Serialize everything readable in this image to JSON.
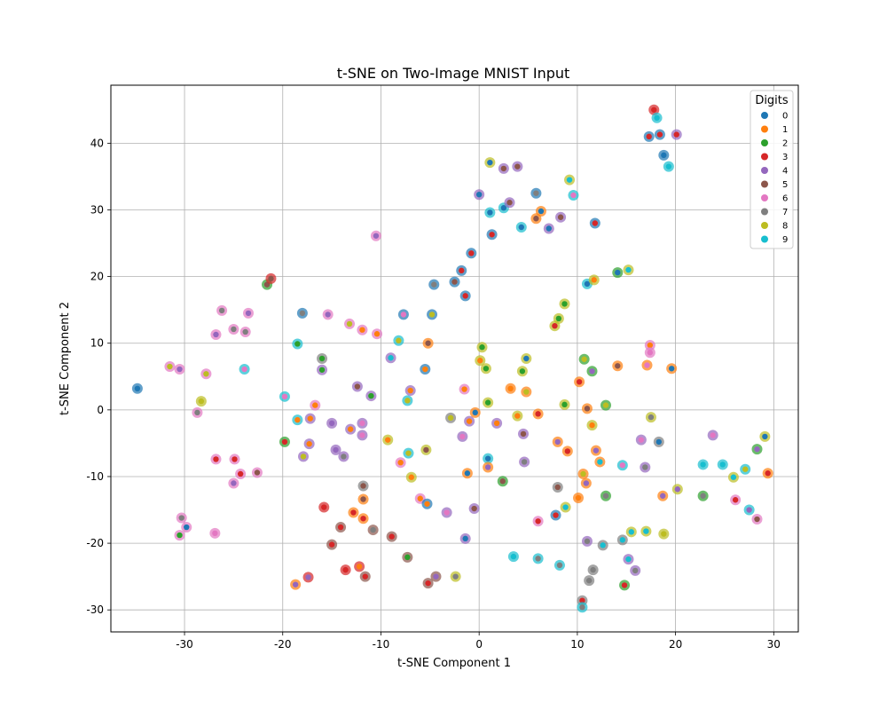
{
  "chart_data": {
    "type": "scatter",
    "title": "t-SNE on Two-Image MNIST Input",
    "xlabel": "t-SNE Component 1",
    "ylabel": "t-SNE Component 2",
    "xlim": [
      -37.5,
      32.5
    ],
    "ylim": [
      -33.3,
      48.7
    ],
    "xticks": [
      -30,
      -20,
      -10,
      0,
      10,
      20,
      30
    ],
    "yticks": [
      -30,
      -20,
      -10,
      0,
      10,
      20,
      30,
      40
    ],
    "grid": true,
    "legend": {
      "title": "Digits",
      "position": "top-right",
      "entries": [
        "0",
        "1",
        "2",
        "3",
        "4",
        "5",
        "6",
        "7",
        "8",
        "9"
      ]
    },
    "colors": [
      "#1f77b4",
      "#ff7f0e",
      "#2ca02c",
      "#d62728",
      "#9467bd",
      "#8c564b",
      "#e377c2",
      "#7f7f7f",
      "#bcbd22",
      "#17becf"
    ],
    "points": [
      {
        "x": -34.8,
        "y": 3.2,
        "outer": 0,
        "inner": 0
      },
      {
        "x": -31.5,
        "y": 6.5,
        "outer": 6,
        "inner": 8
      },
      {
        "x": -30.5,
        "y": 6.1,
        "outer": 6,
        "inner": 4
      },
      {
        "x": -28.7,
        "y": -0.4,
        "outer": 6,
        "inner": 7
      },
      {
        "x": -28.3,
        "y": 1.3,
        "outer": 8,
        "inner": 8
      },
      {
        "x": -27.8,
        "y": 5.4,
        "outer": 6,
        "inner": 8
      },
      {
        "x": -26.8,
        "y": 11.3,
        "outer": 6,
        "inner": 4
      },
      {
        "x": -26.8,
        "y": -7.4,
        "outer": 6,
        "inner": 3
      },
      {
        "x": -26.9,
        "y": -18.5,
        "outer": 6,
        "inner": 6
      },
      {
        "x": -26.2,
        "y": 14.9,
        "outer": 6,
        "inner": 7
      },
      {
        "x": -25.0,
        "y": 12.1,
        "outer": 6,
        "inner": 7
      },
      {
        "x": -24.9,
        "y": -7.4,
        "outer": 6,
        "inner": 3
      },
      {
        "x": -25.0,
        "y": -11.0,
        "outer": 6,
        "inner": 4
      },
      {
        "x": -24.3,
        "y": -9.6,
        "outer": 6,
        "inner": 3
      },
      {
        "x": -23.9,
        "y": 6.1,
        "outer": 9,
        "inner": 6
      },
      {
        "x": -23.8,
        "y": 11.7,
        "outer": 6,
        "inner": 7
      },
      {
        "x": -23.5,
        "y": 14.5,
        "outer": 6,
        "inner": 4
      },
      {
        "x": -22.6,
        "y": -9.4,
        "outer": 6,
        "inner": 5
      },
      {
        "x": -30.3,
        "y": -16.2,
        "outer": 6,
        "inner": 7
      },
      {
        "x": -30.5,
        "y": -18.8,
        "outer": 6,
        "inner": 2
      },
      {
        "x": -29.8,
        "y": -17.6,
        "outer": 6,
        "inner": 0
      },
      {
        "x": -21.6,
        "y": 18.8,
        "outer": 2,
        "inner": 5
      },
      {
        "x": -21.2,
        "y": 19.7,
        "outer": 3,
        "inner": 5
      },
      {
        "x": -19.8,
        "y": 2.0,
        "outer": 9,
        "inner": 6
      },
      {
        "x": -19.8,
        "y": -4.8,
        "outer": 2,
        "inner": 3
      },
      {
        "x": -18.5,
        "y": 9.9,
        "outer": 9,
        "inner": 2
      },
      {
        "x": -18.5,
        "y": -1.5,
        "outer": 9,
        "inner": 1
      },
      {
        "x": -18.7,
        "y": -26.2,
        "outer": 1,
        "inner": 4
      },
      {
        "x": -18.0,
        "y": 14.5,
        "outer": 0,
        "inner": 7
      },
      {
        "x": -17.9,
        "y": -7.0,
        "outer": 4,
        "inner": 8
      },
      {
        "x": -17.3,
        "y": -5.1,
        "outer": 4,
        "inner": 1
      },
      {
        "x": -17.2,
        "y": -1.3,
        "outer": 4,
        "inner": 1
      },
      {
        "x": -17.4,
        "y": -25.1,
        "outer": 3,
        "inner": 4
      },
      {
        "x": -16.7,
        "y": 0.7,
        "outer": 6,
        "inner": 1
      },
      {
        "x": -16.0,
        "y": 7.7,
        "outer": 7,
        "inner": 2
      },
      {
        "x": -16.0,
        "y": 6.0,
        "outer": 4,
        "inner": 2
      },
      {
        "x": -15.8,
        "y": -14.6,
        "outer": 3,
        "inner": 3
      },
      {
        "x": -15.4,
        "y": 14.3,
        "outer": 6,
        "inner": 4
      },
      {
        "x": -15.0,
        "y": -2.0,
        "outer": 4,
        "inner": 4
      },
      {
        "x": -15.0,
        "y": -20.2,
        "outer": 5,
        "inner": 3
      },
      {
        "x": -14.6,
        "y": -6.0,
        "outer": 4,
        "inner": 4
      },
      {
        "x": -14.1,
        "y": -17.6,
        "outer": 5,
        "inner": 3
      },
      {
        "x": -13.8,
        "y": -7.0,
        "outer": 4,
        "inner": 7
      },
      {
        "x": -13.6,
        "y": -24.0,
        "outer": 3,
        "inner": 3
      },
      {
        "x": -13.2,
        "y": 12.9,
        "outer": 6,
        "inner": 8
      },
      {
        "x": -13.1,
        "y": -2.9,
        "outer": 4,
        "inner": 1
      },
      {
        "x": -12.8,
        "y": -15.4,
        "outer": 1,
        "inner": 3
      },
      {
        "x": -12.4,
        "y": 3.5,
        "outer": 4,
        "inner": 5
      },
      {
        "x": -12.2,
        "y": -23.5,
        "outer": 3,
        "inner": 1
      },
      {
        "x": -11.9,
        "y": 12.0,
        "outer": 6,
        "inner": 1
      },
      {
        "x": -11.9,
        "y": -2.0,
        "outer": 4,
        "inner": 6
      },
      {
        "x": -11.9,
        "y": -3.8,
        "outer": 4,
        "inner": 6
      },
      {
        "x": -11.8,
        "y": -11.4,
        "outer": 7,
        "inner": 5
      },
      {
        "x": -11.8,
        "y": -13.4,
        "outer": 1,
        "inner": 5
      },
      {
        "x": -11.8,
        "y": -16.3,
        "outer": 1,
        "inner": 3
      },
      {
        "x": -11.6,
        "y": -25.0,
        "outer": 5,
        "inner": 3
      },
      {
        "x": -11.0,
        "y": 2.1,
        "outer": 4,
        "inner": 2
      },
      {
        "x": -10.8,
        "y": -18.0,
        "outer": 5,
        "inner": 7
      },
      {
        "x": -10.5,
        "y": 26.1,
        "outer": 6,
        "inner": 4
      },
      {
        "x": -10.4,
        "y": 11.4,
        "outer": 6,
        "inner": 1
      },
      {
        "x": -9.3,
        "y": -4.5,
        "outer": 8,
        "inner": 1
      },
      {
        "x": -9.0,
        "y": 7.8,
        "outer": 4,
        "inner": 9
      },
      {
        "x": -8.9,
        "y": -19.0,
        "outer": 5,
        "inner": 3
      },
      {
        "x": -8.2,
        "y": 10.4,
        "outer": 9,
        "inner": 8
      },
      {
        "x": -8.0,
        "y": -7.9,
        "outer": 6,
        "inner": 1
      },
      {
        "x": -7.7,
        "y": 14.3,
        "outer": 0,
        "inner": 6
      },
      {
        "x": -7.3,
        "y": 1.4,
        "outer": 9,
        "inner": 8
      },
      {
        "x": -7.3,
        "y": -22.1,
        "outer": 5,
        "inner": 2
      },
      {
        "x": -7.2,
        "y": -6.5,
        "outer": 9,
        "inner": 8
      },
      {
        "x": -7.0,
        "y": 2.9,
        "outer": 4,
        "inner": 1
      },
      {
        "x": -6.9,
        "y": -10.1,
        "outer": 8,
        "inner": 1
      },
      {
        "x": -6.0,
        "y": -13.3,
        "outer": 6,
        "inner": 1
      },
      {
        "x": -5.4,
        "y": -6.0,
        "outer": 8,
        "inner": 5
      },
      {
        "x": -5.5,
        "y": 6.1,
        "outer": 0,
        "inner": 1
      },
      {
        "x": -5.2,
        "y": 10.0,
        "outer": 1,
        "inner": 5
      },
      {
        "x": -5.3,
        "y": -14.1,
        "outer": 0,
        "inner": 1
      },
      {
        "x": -5.2,
        "y": -26.0,
        "outer": 5,
        "inner": 3
      },
      {
        "x": -4.8,
        "y": 14.3,
        "outer": 0,
        "inner": 8
      },
      {
        "x": -4.6,
        "y": 18.8,
        "outer": 0,
        "inner": 7
      },
      {
        "x": -4.4,
        "y": -25.0,
        "outer": 5,
        "inner": 4
      },
      {
        "x": -3.3,
        "y": -15.4,
        "outer": 4,
        "inner": 6
      },
      {
        "x": -2.9,
        "y": -1.2,
        "outer": 7,
        "inner": 8
      },
      {
        "x": -2.4,
        "y": -25.0,
        "outer": 8,
        "inner": 7
      },
      {
        "x": -2.5,
        "y": 19.2,
        "outer": 0,
        "inner": 5
      },
      {
        "x": -1.8,
        "y": 20.9,
        "outer": 0,
        "inner": 3
      },
      {
        "x": -1.7,
        "y": -4.0,
        "outer": 4,
        "inner": 6
      },
      {
        "x": -1.5,
        "y": 3.1,
        "outer": 6,
        "inner": 1
      },
      {
        "x": -1.4,
        "y": 17.1,
        "outer": 0,
        "inner": 3
      },
      {
        "x": -1.4,
        "y": -19.3,
        "outer": 4,
        "inner": 0
      },
      {
        "x": -1.2,
        "y": -9.5,
        "outer": 1,
        "inner": 0
      },
      {
        "x": -1.0,
        "y": -1.7,
        "outer": 4,
        "inner": 1
      },
      {
        "x": -0.8,
        "y": 23.5,
        "outer": 0,
        "inner": 3
      },
      {
        "x": -0.5,
        "y": -14.8,
        "outer": 4,
        "inner": 5
      },
      {
        "x": -0.4,
        "y": -0.4,
        "outer": 1,
        "inner": 0
      },
      {
        "x": 0.0,
        "y": 32.3,
        "outer": 4,
        "inner": 0
      },
      {
        "x": 0.1,
        "y": 7.4,
        "outer": 8,
        "inner": 1
      },
      {
        "x": 0.3,
        "y": 9.4,
        "outer": 8,
        "inner": 2
      },
      {
        "x": 0.7,
        "y": 6.2,
        "outer": 8,
        "inner": 2
      },
      {
        "x": 0.9,
        "y": -7.3,
        "outer": 9,
        "inner": 0
      },
      {
        "x": 0.9,
        "y": 1.1,
        "outer": 8,
        "inner": 2
      },
      {
        "x": 0.9,
        "y": -8.6,
        "outer": 1,
        "inner": 4
      },
      {
        "x": 1.1,
        "y": 37.1,
        "outer": 8,
        "inner": 0
      },
      {
        "x": 1.1,
        "y": 29.6,
        "outer": 9,
        "inner": 0
      },
      {
        "x": 1.3,
        "y": 26.3,
        "outer": 0,
        "inner": 3
      },
      {
        "x": 1.8,
        "y": -2.0,
        "outer": 4,
        "inner": 1
      },
      {
        "x": 2.4,
        "y": -10.7,
        "outer": 2,
        "inner": 5
      },
      {
        "x": 2.5,
        "y": 36.2,
        "outer": 4,
        "inner": 5
      },
      {
        "x": 2.5,
        "y": 30.3,
        "outer": 9,
        "inner": 0
      },
      {
        "x": 3.1,
        "y": 31.1,
        "outer": 4,
        "inner": 5
      },
      {
        "x": 3.2,
        "y": 3.2,
        "outer": 1,
        "inner": 1
      },
      {
        "x": 3.5,
        "y": -22.0,
        "outer": 9,
        "inner": 9
      },
      {
        "x": 3.9,
        "y": -0.9,
        "outer": 8,
        "inner": 1
      },
      {
        "x": 3.9,
        "y": 36.5,
        "outer": 4,
        "inner": 5
      },
      {
        "x": 4.3,
        "y": 27.4,
        "outer": 9,
        "inner": 0
      },
      {
        "x": 4.4,
        "y": 5.8,
        "outer": 8,
        "inner": 2
      },
      {
        "x": 4.5,
        "y": -3.6,
        "outer": 4,
        "inner": 5
      },
      {
        "x": 4.6,
        "y": -7.8,
        "outer": 4,
        "inner": 7
      },
      {
        "x": 4.8,
        "y": 7.7,
        "outer": 8,
        "inner": 0
      },
      {
        "x": 4.8,
        "y": 2.7,
        "outer": 1,
        "inner": 8
      },
      {
        "x": 5.8,
        "y": 32.5,
        "outer": 0,
        "inner": 7
      },
      {
        "x": 5.8,
        "y": 28.7,
        "outer": 1,
        "inner": 5
      },
      {
        "x": 6.0,
        "y": -16.7,
        "outer": 6,
        "inner": 3
      },
      {
        "x": 6.0,
        "y": -0.6,
        "outer": 1,
        "inner": 3
      },
      {
        "x": 6.0,
        "y": -22.3,
        "outer": 9,
        "inner": 7
      },
      {
        "x": 6.3,
        "y": 29.8,
        "outer": 1,
        "inner": 0
      },
      {
        "x": 7.1,
        "y": 27.2,
        "outer": 4,
        "inner": 0
      },
      {
        "x": 7.7,
        "y": 12.6,
        "outer": 8,
        "inner": 3
      },
      {
        "x": 7.8,
        "y": -15.8,
        "outer": 0,
        "inner": 3
      },
      {
        "x": 8.0,
        "y": -4.8,
        "outer": 1,
        "inner": 4
      },
      {
        "x": 8.0,
        "y": -11.6,
        "outer": 7,
        "inner": 5
      },
      {
        "x": 8.1,
        "y": 13.7,
        "outer": 8,
        "inner": 2
      },
      {
        "x": 8.2,
        "y": -23.3,
        "outer": 9,
        "inner": 7
      },
      {
        "x": 8.3,
        "y": 28.9,
        "outer": 4,
        "inner": 5
      },
      {
        "x": 8.7,
        "y": 15.9,
        "outer": 8,
        "inner": 2
      },
      {
        "x": 8.7,
        "y": 0.8,
        "outer": 8,
        "inner": 2
      },
      {
        "x": 8.8,
        "y": -14.6,
        "outer": 8,
        "inner": 9
      },
      {
        "x": 9.0,
        "y": -6.2,
        "outer": 1,
        "inner": 3
      },
      {
        "x": 9.2,
        "y": 34.5,
        "outer": 8,
        "inner": 9
      },
      {
        "x": 9.6,
        "y": 32.2,
        "outer": 9,
        "inner": 6
      },
      {
        "x": 10.1,
        "y": -13.2,
        "outer": 1,
        "inner": 1
      },
      {
        "x": 10.2,
        "y": 4.2,
        "outer": 1,
        "inner": 3
      },
      {
        "x": 10.5,
        "y": -28.6,
        "outer": 7,
        "inner": 3
      },
      {
        "x": 10.5,
        "y": -29.6,
        "outer": 9,
        "inner": 7
      },
      {
        "x": 10.6,
        "y": -9.6,
        "outer": 1,
        "inner": 8
      },
      {
        "x": 10.7,
        "y": 7.6,
        "outer": 2,
        "inner": 8
      },
      {
        "x": 10.9,
        "y": -11.0,
        "outer": 1,
        "inner": 4
      },
      {
        "x": 11.0,
        "y": 0.2,
        "outer": 1,
        "inner": 5
      },
      {
        "x": 11.0,
        "y": 18.9,
        "outer": 9,
        "inner": 0
      },
      {
        "x": 11.0,
        "y": -19.7,
        "outer": 4,
        "inner": 7
      },
      {
        "x": 11.2,
        "y": -25.6,
        "outer": 7,
        "inner": 7
      },
      {
        "x": 11.5,
        "y": 5.8,
        "outer": 2,
        "inner": 4
      },
      {
        "x": 11.5,
        "y": -2.3,
        "outer": 8,
        "inner": 1
      },
      {
        "x": 11.6,
        "y": -24.0,
        "outer": 7,
        "inner": 7
      },
      {
        "x": 11.7,
        "y": 19.5,
        "outer": 8,
        "inner": 1
      },
      {
        "x": 11.8,
        "y": 28.0,
        "outer": 0,
        "inner": 3
      },
      {
        "x": 11.9,
        "y": -6.1,
        "outer": 1,
        "inner": 4
      },
      {
        "x": 12.3,
        "y": -7.8,
        "outer": 1,
        "inner": 9
      },
      {
        "x": 12.6,
        "y": -20.3,
        "outer": 7,
        "inner": 9
      },
      {
        "x": 12.9,
        "y": 0.7,
        "outer": 2,
        "inner": 8
      },
      {
        "x": 12.9,
        "y": -12.9,
        "outer": 2,
        "inner": 7
      },
      {
        "x": 14.1,
        "y": 20.6,
        "outer": 2,
        "inner": 0
      },
      {
        "x": 14.1,
        "y": 6.6,
        "outer": 1,
        "inner": 5
      },
      {
        "x": 14.6,
        "y": -8.3,
        "outer": 9,
        "inner": 6
      },
      {
        "x": 14.6,
        "y": -19.5,
        "outer": 7,
        "inner": 9
      },
      {
        "x": 14.8,
        "y": -26.3,
        "outer": 2,
        "inner": 3
      },
      {
        "x": 15.2,
        "y": 21.0,
        "outer": 8,
        "inner": 9
      },
      {
        "x": 15.2,
        "y": -22.4,
        "outer": 4,
        "inner": 9
      },
      {
        "x": 15.5,
        "y": -18.3,
        "outer": 8,
        "inner": 9
      },
      {
        "x": 15.9,
        "y": -24.1,
        "outer": 4,
        "inner": 7
      },
      {
        "x": 16.5,
        "y": -4.5,
        "outer": 4,
        "inner": 6
      },
      {
        "x": 16.9,
        "y": -8.6,
        "outer": 4,
        "inner": 7
      },
      {
        "x": 17.0,
        "y": -18.2,
        "outer": 8,
        "inner": 9
      },
      {
        "x": 17.1,
        "y": 6.7,
        "outer": 1,
        "inner": 6
      },
      {
        "x": 17.3,
        "y": 41.0,
        "outer": 0,
        "inner": 3
      },
      {
        "x": 17.4,
        "y": 9.7,
        "outer": 6,
        "inner": 1
      },
      {
        "x": 17.4,
        "y": 8.6,
        "outer": 6,
        "inner": 6
      },
      {
        "x": 17.5,
        "y": -1.1,
        "outer": 8,
        "inner": 7
      },
      {
        "x": 17.8,
        "y": 45.0,
        "outer": 3,
        "inner": 3
      },
      {
        "x": 18.1,
        "y": 43.8,
        "outer": 9,
        "inner": 9
      },
      {
        "x": 18.3,
        "y": -4.8,
        "outer": 7,
        "inner": 0
      },
      {
        "x": 18.4,
        "y": 41.3,
        "outer": 0,
        "inner": 3
      },
      {
        "x": 18.7,
        "y": -12.9,
        "outer": 1,
        "inner": 4
      },
      {
        "x": 18.8,
        "y": -18.6,
        "outer": 8,
        "inner": 8
      },
      {
        "x": 18.8,
        "y": 38.2,
        "outer": 0,
        "inner": 0
      },
      {
        "x": 19.3,
        "y": 36.5,
        "outer": 9,
        "inner": 9
      },
      {
        "x": 19.6,
        "y": 6.2,
        "outer": 1,
        "inner": 0
      },
      {
        "x": 20.1,
        "y": 41.3,
        "outer": 4,
        "inner": 3
      },
      {
        "x": 20.2,
        "y": -11.9,
        "outer": 8,
        "inner": 4
      },
      {
        "x": 22.8,
        "y": -8.2,
        "outer": 9,
        "inner": 9
      },
      {
        "x": 22.8,
        "y": -12.9,
        "outer": 2,
        "inner": 7
      },
      {
        "x": 23.8,
        "y": -3.8,
        "outer": 4,
        "inner": 6
      },
      {
        "x": 24.8,
        "y": -8.2,
        "outer": 9,
        "inner": 9
      },
      {
        "x": 25.9,
        "y": -10.1,
        "outer": 8,
        "inner": 9
      },
      {
        "x": 26.1,
        "y": -13.5,
        "outer": 6,
        "inner": 3
      },
      {
        "x": 27.1,
        "y": -8.9,
        "outer": 9,
        "inner": 8
      },
      {
        "x": 27.5,
        "y": -15.0,
        "outer": 9,
        "inner": 4
      },
      {
        "x": 28.3,
        "y": -16.4,
        "outer": 6,
        "inner": 5
      },
      {
        "x": 28.3,
        "y": -5.9,
        "outer": 2,
        "inner": 4
      },
      {
        "x": 29.1,
        "y": -4.0,
        "outer": 8,
        "inner": 0
      },
      {
        "x": 29.4,
        "y": -9.5,
        "outer": 1,
        "inner": 3
      }
    ]
  }
}
